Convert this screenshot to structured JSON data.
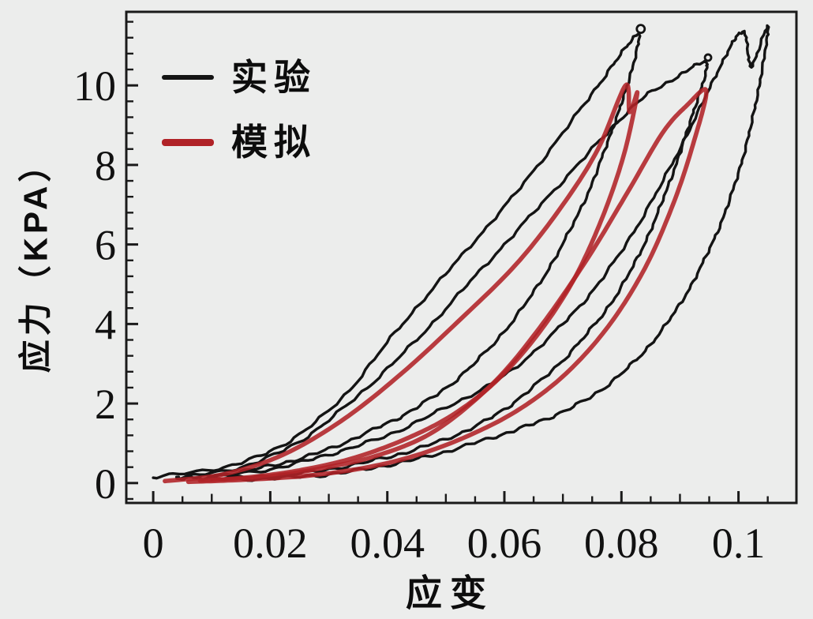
{
  "figure": {
    "background": "#ecedec",
    "frame_color": "#1a1a1a",
    "tick_label_color": "#111111"
  },
  "chart_data": {
    "type": "line",
    "title": "",
    "xlabel": "应变",
    "ylabel": "应力（KPA）",
    "xlim": [
      -0.0046,
      0.1099
    ],
    "ylim": [
      -0.5,
      11.85
    ],
    "grid": false,
    "x_major_ticks": [
      0,
      0.02,
      0.04,
      0.06,
      0.08,
      0.1
    ],
    "x_tick_labels": [
      "0",
      "0.02",
      "0.04",
      "0.06",
      "0.08",
      "0.1"
    ],
    "x_minor_step": 0.005,
    "y_major_ticks": [
      0,
      2,
      4,
      6,
      8,
      10
    ],
    "y_tick_labels": [
      "0",
      "2",
      "4",
      "6",
      "8",
      "10"
    ],
    "y_minor_step": 0.4,
    "legend": {
      "position": "top-left",
      "entries": [
        {
          "label": "实验",
          "color": "#141414"
        },
        {
          "label": "模拟",
          "color": "#b02227"
        }
      ]
    },
    "series": [
      {
        "name": "实验",
        "color": "#141414",
        "width": 3.4,
        "noise": true,
        "opacity": 1,
        "segments": [
          [
            [
              0.0,
              0.15
            ],
            [
              0.012,
              0.4
            ],
            [
              0.022,
              0.95
            ],
            [
              0.032,
              2.1
            ],
            [
              0.042,
              3.9
            ],
            [
              0.052,
              5.6
            ],
            [
              0.062,
              7.3
            ],
            [
              0.072,
              9.2
            ],
            [
              0.079,
              10.6
            ],
            [
              0.083,
              11.3
            ],
            [
              0.0812,
              10.1
            ],
            [
              0.0782,
              8.8
            ],
            [
              0.074,
              7.2
            ],
            [
              0.068,
              5.5
            ],
            [
              0.061,
              4.0
            ],
            [
              0.053,
              2.75
            ],
            [
              0.045,
              1.9
            ],
            [
              0.037,
              1.3
            ],
            [
              0.028,
              0.75
            ],
            [
              0.019,
              0.4
            ],
            [
              0.01,
              0.18
            ],
            [
              0.004,
              0.13
            ]
          ],
          [
            [
              0.004,
              0.13
            ],
            [
              0.015,
              0.4
            ],
            [
              0.025,
              1.05
            ],
            [
              0.035,
              2.2
            ],
            [
              0.045,
              3.6
            ],
            [
              0.055,
              5.2
            ],
            [
              0.065,
              6.8
            ],
            [
              0.075,
              8.4
            ],
            [
              0.083,
              9.6
            ],
            [
              0.09,
              10.25
            ],
            [
              0.0946,
              10.56
            ],
            [
              0.0922,
              9.3
            ],
            [
              0.0888,
              7.8
            ],
            [
              0.0845,
              6.2
            ],
            [
              0.079,
              4.7
            ],
            [
              0.072,
              3.4
            ],
            [
              0.064,
              2.3
            ],
            [
              0.056,
              1.5
            ],
            [
              0.047,
              0.95
            ],
            [
              0.038,
              0.58
            ],
            [
              0.028,
              0.3
            ],
            [
              0.018,
              0.16
            ],
            [
              0.008,
              0.12
            ]
          ],
          [
            [
              0.008,
              0.12
            ],
            [
              0.02,
              0.35
            ],
            [
              0.03,
              0.72
            ],
            [
              0.04,
              1.2
            ],
            [
              0.05,
              1.9
            ],
            [
              0.06,
              2.7
            ],
            [
              0.07,
              4.0
            ],
            [
              0.078,
              5.4
            ],
            [
              0.086,
              7.3
            ],
            [
              0.093,
              9.3
            ],
            [
              0.098,
              10.8
            ],
            [
              0.1009,
              11.35
            ],
            [
              0.1022,
              10.5
            ],
            [
              0.105,
              11.49
            ],
            [
              0.1038,
              10.2
            ],
            [
              0.1015,
              8.6
            ],
            [
              0.0982,
              7.0
            ],
            [
              0.0938,
              5.5
            ],
            [
              0.0882,
              4.1
            ],
            [
              0.0815,
              2.95
            ],
            [
              0.074,
              2.1
            ],
            [
              0.066,
              1.55
            ],
            [
              0.058,
              1.15
            ],
            [
              0.049,
              0.75
            ],
            [
              0.04,
              0.45
            ],
            [
              0.03,
              0.22
            ],
            [
              0.02,
              0.12
            ],
            [
              0.01,
              0.08
            ]
          ]
        ]
      },
      {
        "name": "模拟",
        "color": "#b02227",
        "width": 5.6,
        "noise": false,
        "opacity": 0.88,
        "segments": [
          [
            [
              0.002,
              0.05
            ],
            [
              0.012,
              0.22
            ],
            [
              0.022,
              0.7
            ],
            [
              0.032,
              1.55
            ],
            [
              0.042,
              2.7
            ],
            [
              0.052,
              4.05
            ],
            [
              0.062,
              5.5
            ],
            [
              0.07,
              7.0
            ],
            [
              0.076,
              8.4
            ],
            [
              0.0807,
              10.0
            ],
            [
              0.0814,
              9.33
            ],
            [
              0.0827,
              9.8
            ],
            [
              0.0805,
              8.3
            ],
            [
              0.0768,
              6.7
            ],
            [
              0.0718,
              5.1
            ],
            [
              0.0655,
              3.7
            ],
            [
              0.0585,
              2.55
            ],
            [
              0.051,
              1.7
            ],
            [
              0.043,
              1.1
            ],
            [
              0.034,
              0.62
            ],
            [
              0.025,
              0.32
            ],
            [
              0.016,
              0.14
            ],
            [
              0.008,
              0.06
            ]
          ],
          [
            [
              0.008,
              0.06
            ],
            [
              0.018,
              0.14
            ],
            [
              0.028,
              0.35
            ],
            [
              0.038,
              0.68
            ],
            [
              0.048,
              1.3
            ],
            [
              0.058,
              2.5
            ],
            [
              0.066,
              3.9
            ],
            [
              0.074,
              5.6
            ],
            [
              0.081,
              7.3
            ],
            [
              0.087,
              8.8
            ],
            [
              0.0912,
              9.5
            ],
            [
              0.0945,
              9.86
            ],
            [
              0.0922,
              8.5
            ],
            [
              0.0888,
              7.0
            ],
            [
              0.084,
              5.4
            ],
            [
              0.0778,
              3.95
            ],
            [
              0.0705,
              2.75
            ],
            [
              0.0625,
              1.85
            ],
            [
              0.054,
              1.2
            ],
            [
              0.045,
              0.7
            ],
            [
              0.036,
              0.38
            ],
            [
              0.026,
              0.18
            ],
            [
              0.015,
              0.08
            ],
            [
              0.006,
              0.03
            ]
          ]
        ]
      }
    ],
    "peak_knots": [
      {
        "x": 0.0833,
        "y": 11.42,
        "r": 5
      },
      {
        "x": 0.0948,
        "y": 10.7,
        "r": 4
      }
    ]
  }
}
